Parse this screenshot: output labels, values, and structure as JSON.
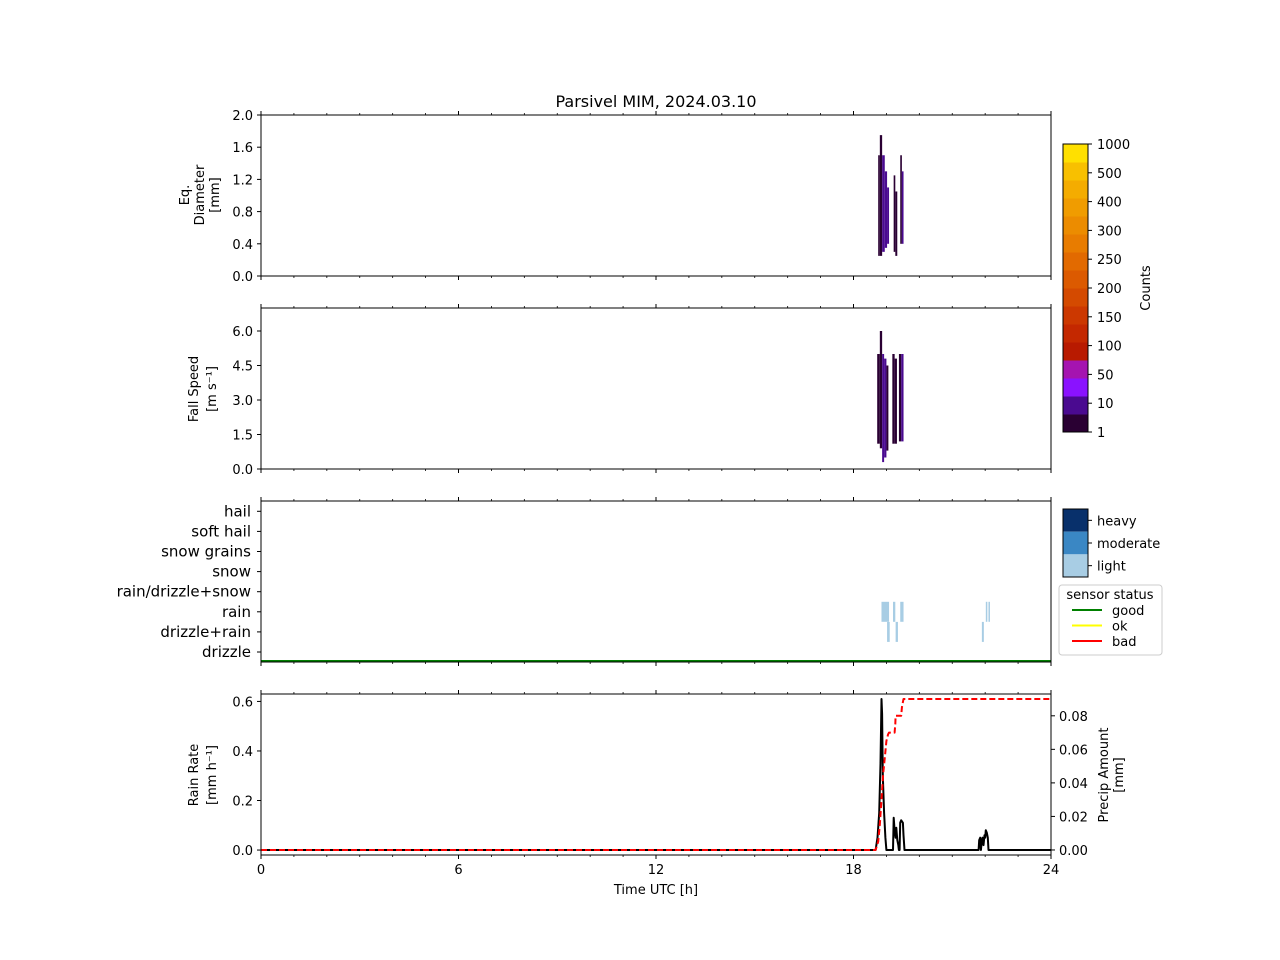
{
  "figure": {
    "title": "Parsivel MIM, 2024.03.10"
  },
  "chart_data": [
    {
      "type": "heatmap",
      "panel": "diameter",
      "ylabel_lines": [
        "Eq.",
        "Diameter",
        "[mm]"
      ],
      "ylim": [
        0,
        2.0
      ],
      "yticks": [
        0.0,
        0.4,
        0.8,
        1.2,
        1.6,
        2.0
      ],
      "ytick_labels": [
        "0.0",
        "0.4",
        "0.8",
        "1.2",
        "1.6",
        "2.0"
      ],
      "xlim": [
        0,
        24
      ],
      "cells": [
        {
          "t0": 18.75,
          "t1": 18.8,
          "y0": 0.25,
          "y1": 1.5,
          "count": 3
        },
        {
          "t0": 18.8,
          "t1": 18.87,
          "y0": 0.25,
          "y1": 1.75,
          "count": 4
        },
        {
          "t0": 18.87,
          "t1": 18.95,
          "y0": 0.3,
          "y1": 1.5,
          "count": 12
        },
        {
          "t0": 18.95,
          "t1": 19.02,
          "y0": 0.35,
          "y1": 1.3,
          "count": 15
        },
        {
          "t0": 19.02,
          "t1": 19.08,
          "y0": 0.4,
          "y1": 1.1,
          "count": 8
        },
        {
          "t0": 19.22,
          "t1": 19.27,
          "y0": 0.3,
          "y1": 1.25,
          "count": 3
        },
        {
          "t0": 19.27,
          "t1": 19.33,
          "y0": 0.25,
          "y1": 1.05,
          "count": 6
        },
        {
          "t0": 19.42,
          "t1": 19.47,
          "y0": 0.4,
          "y1": 1.5,
          "count": 3
        },
        {
          "t0": 19.47,
          "t1": 19.52,
          "y0": 0.4,
          "y1": 1.3,
          "count": 7
        }
      ]
    },
    {
      "type": "heatmap",
      "panel": "fall_speed",
      "ylabel_lines": [
        "Fall Speed",
        "[m s⁻¹]"
      ],
      "ylim": [
        0,
        7.0
      ],
      "yticks": [
        0.0,
        1.5,
        3.0,
        4.5,
        6.0
      ],
      "ytick_labels": [
        "0.0",
        "1.5",
        "3.0",
        "4.5",
        "6.0"
      ],
      "xlim": [
        0,
        24
      ],
      "cells": [
        {
          "t0": 18.72,
          "t1": 18.8,
          "y0": 1.1,
          "y1": 5.0,
          "count": 3
        },
        {
          "t0": 18.8,
          "t1": 18.87,
          "y0": 0.9,
          "y1": 6.0,
          "count": 4
        },
        {
          "t0": 18.87,
          "t1": 18.93,
          "y0": 0.3,
          "y1": 5.0,
          "count": 14
        },
        {
          "t0": 18.93,
          "t1": 19.0,
          "y0": 0.5,
          "y1": 4.8,
          "count": 12
        },
        {
          "t0": 19.0,
          "t1": 19.06,
          "y0": 0.8,
          "y1": 4.5,
          "count": 6
        },
        {
          "t0": 19.18,
          "t1": 19.25,
          "y0": 1.1,
          "y1": 5.0,
          "count": 3
        },
        {
          "t0": 19.25,
          "t1": 19.32,
          "y0": 1.1,
          "y1": 4.8,
          "count": 6
        },
        {
          "t0": 19.38,
          "t1": 19.45,
          "y0": 1.2,
          "y1": 5.0,
          "count": 3
        },
        {
          "t0": 19.45,
          "t1": 19.52,
          "y0": 1.2,
          "y1": 5.0,
          "count": 7
        }
      ],
      "colorbar": {
        "label": "Counts",
        "levels": [
          1,
          10,
          50,
          100,
          150,
          200,
          250,
          300,
          400,
          500,
          1000
        ],
        "level_labels": [
          "1",
          "10",
          "50",
          "100",
          "150",
          "200",
          "250",
          "300",
          "400",
          "500",
          "1000"
        ],
        "colors": [
          "#2a0033",
          "#4a0a90",
          "#8a12ff",
          "#a514b0",
          "#b81a00",
          "#c42800",
          "#cc3800",
          "#d44a00",
          "#dc5a00",
          "#e26a00",
          "#e87c00",
          "#ec8c00",
          "#f09c00",
          "#f4ac00",
          "#f8c000",
          "#ffe000"
        ]
      }
    },
    {
      "type": "categorical",
      "panel": "precip_type",
      "categories": [
        "drizzle",
        "drizzle+rain",
        "rain",
        "rain/drizzle+snow",
        "snow",
        "snow grains",
        "soft hail",
        "hail"
      ],
      "intensity_legend": {
        "labels": [
          "heavy",
          "moderate",
          "light"
        ],
        "colors": [
          "#08306b",
          "#3a87c4",
          "#a8cde4"
        ]
      },
      "events": [
        {
          "category": "rain",
          "t0": 18.85,
          "t1": 19.08,
          "intensity": "light"
        },
        {
          "category": "rain",
          "t0": 19.2,
          "t1": 19.27,
          "intensity": "light"
        },
        {
          "category": "rain",
          "t0": 19.42,
          "t1": 19.52,
          "intensity": "light"
        },
        {
          "category": "rain",
          "t0": 22.02,
          "t1": 22.06,
          "intensity": "light"
        },
        {
          "category": "rain",
          "t0": 22.1,
          "t1": 22.14,
          "intensity": "light"
        },
        {
          "category": "drizzle+rain",
          "t0": 19.02,
          "t1": 19.1,
          "intensity": "light"
        },
        {
          "category": "drizzle+rain",
          "t0": 19.28,
          "t1": 19.35,
          "intensity": "light"
        },
        {
          "category": "drizzle+rain",
          "t0": 21.9,
          "t1": 21.96,
          "intensity": "light"
        }
      ],
      "sensor_status_legend": {
        "title": "sensor status",
        "labels": [
          "good",
          "ok",
          "bad"
        ],
        "colors": [
          "#008000",
          "#ffff00",
          "#ff0000"
        ]
      },
      "sensor_status": [
        {
          "t0": 0,
          "t1": 24,
          "status": "good"
        }
      ]
    },
    {
      "type": "line",
      "panel": "rain",
      "xlabel": "Time UTC [h]",
      "xlim": [
        0,
        24
      ],
      "xticks": [
        0,
        6,
        12,
        18,
        24
      ],
      "xtick_labels": [
        "0",
        "6",
        "12",
        "18",
        "24"
      ],
      "ylabel_lines": [
        "Rain Rate",
        "[mm h⁻¹]"
      ],
      "ylim": [
        -0.02,
        0.63
      ],
      "yticks": [
        0.0,
        0.2,
        0.4,
        0.6
      ],
      "ytick_labels": [
        "0.0",
        "0.2",
        "0.4",
        "0.6"
      ],
      "y2label_lines": [
        "Precip Amount",
        "[mm]"
      ],
      "y2lim": [
        -0.003,
        0.093
      ],
      "y2ticks": [
        0.0,
        0.02,
        0.04,
        0.06,
        0.08
      ],
      "y2tick_labels": [
        "0.00",
        "0.02",
        "0.04",
        "0.06",
        "0.08"
      ],
      "series": [
        {
          "axis": "left",
          "color": "#000000",
          "style": "solid",
          "x": [
            0,
            18.67,
            18.73,
            18.78,
            18.82,
            18.85,
            18.87,
            18.89,
            18.93,
            18.97,
            19.0,
            19.05,
            19.13,
            19.2,
            19.22,
            19.25,
            19.28,
            19.3,
            19.33,
            19.36,
            19.38,
            19.4,
            19.42,
            19.45,
            19.5,
            19.52,
            19.55,
            19.6,
            21.8,
            21.82,
            21.85,
            21.87,
            21.9,
            21.92,
            21.95,
            21.98,
            22.0,
            22.02,
            22.05,
            22.08,
            22.1,
            22.15,
            24
          ],
          "y": [
            0,
            0,
            0.05,
            0.15,
            0.35,
            0.61,
            0.55,
            0.3,
            0.15,
            0.05,
            0,
            0,
            0,
            0,
            0.13,
            0.08,
            0.05,
            0.09,
            0.04,
            0.02,
            0,
            0,
            0.11,
            0.12,
            0.11,
            0.06,
            0,
            0,
            0,
            0.04,
            0.05,
            0,
            0.04,
            0.05,
            0.02,
            0.06,
            0.05,
            0.08,
            0.07,
            0.05,
            0,
            0,
            0
          ]
        },
        {
          "axis": "right",
          "color": "#ff0000",
          "style": "dashed",
          "x": [
            0,
            18.67,
            18.75,
            18.8,
            18.85,
            18.9,
            18.95,
            19.0,
            19.05,
            19.08,
            19.25,
            19.27,
            19.28,
            19.45,
            19.47,
            19.52,
            24
          ],
          "y": [
            0,
            0,
            0.005,
            0.015,
            0.03,
            0.045,
            0.055,
            0.065,
            0.069,
            0.07,
            0.07,
            0.075,
            0.08,
            0.08,
            0.085,
            0.09,
            0.09
          ]
        }
      ]
    }
  ]
}
